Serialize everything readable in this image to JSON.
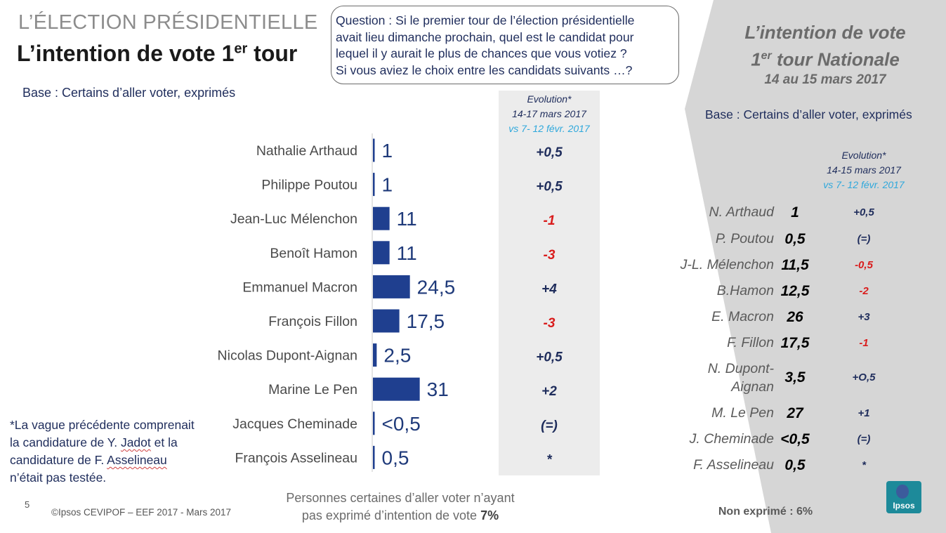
{
  "header": {
    "kicker": "L’ÉLECTION PRÉSIDENTIELLE",
    "title_main": "L’intention de vote 1",
    "title_sup": "er",
    "title_end": " tour",
    "base": "Base : Certains d’aller voter, exprimés"
  },
  "question": {
    "lines": [
      "Question : Si le premier tour de l’élection présidentielle",
      "avait lieu dimanche prochain, quel est le candidat pour",
      "lequel il y aurait le plus de chances que vous votiez ?",
      "Si vous aviez le choix entre les candidats suivants …?"
    ]
  },
  "evolution_header": {
    "line1": "Evolution*",
    "line2": "14-17 mars 2017",
    "line3": "vs 7- 12 févr. 2017"
  },
  "chart_data": {
    "type": "bar",
    "orientation": "horizontal",
    "categories": [
      "Nathalie Arthaud",
      "Philippe Poutou",
      "Jean-Luc Mélenchon",
      "Benoît Hamon",
      "Emmanuel Macron",
      "François Fillon",
      "Nicolas Dupont-Aignan",
      "Marine Le Pen",
      "Jacques Cheminade",
      "François Asselineau"
    ],
    "values": [
      1,
      1,
      11,
      11,
      24.5,
      17.5,
      2.5,
      31,
      0.3,
      0.5
    ],
    "value_labels": [
      "1",
      "1",
      "11",
      "11",
      "24,5",
      "17,5",
      "2,5",
      "31",
      "<0,5",
      "0,5"
    ],
    "evolution": [
      "+0,5",
      "+0,5",
      "-1",
      "-3",
      "+4",
      "-3",
      "+0,5",
      "+2",
      "(=)",
      "*"
    ],
    "evolution_sign": [
      "pos",
      "pos",
      "neg",
      "neg",
      "pos",
      "neg",
      "pos",
      "pos",
      "eq",
      "na"
    ],
    "bar_color": "#1f3f8f",
    "pos_color": "#1f2d5c",
    "neg_color": "#d91c1c",
    "xlim": [
      0,
      31
    ]
  },
  "footnote": {
    "line1": "*La vague précédente comprenait",
    "line2_a": "la candidature de Y. ",
    "line2_b": "Jadot",
    "line2_c": " et la",
    "line3_a": "candidature de F. ",
    "line3_b": "Asselineau",
    "line4": "n’était pas testée."
  },
  "footer": {
    "page_number": "5",
    "copyright": "©Ipsos  CEVIPOF – EEF 2017 - Mars 2017",
    "non_exprime_line1": "Personnes certaines d’aller voter n’ayant",
    "non_exprime_line2": "pas exprimé d’intention de vote ",
    "non_exprime_value": "7%"
  },
  "right_panel": {
    "title_line1": "L’intention de vote",
    "title_line2_a": "1",
    "title_line2_sup": "er",
    "title_line2_b": " tour Nationale",
    "date": "14 au 15 mars 2017",
    "base": "Base : Certains d’aller voter, exprimés",
    "evo_line1": "Evolution*",
    "evo_line2": "14-15 mars 2017",
    "evo_line3": "vs 7- 12 févr. 2017",
    "rows": [
      {
        "name": "N. Arthaud",
        "value": "1",
        "evo": "+0,5",
        "sign": "pos"
      },
      {
        "name": "P. Poutou",
        "value": "0,5",
        "evo": "(=)",
        "sign": "eq"
      },
      {
        "name": "J-L. Mélenchon",
        "value": "11,5",
        "evo": "-0,5",
        "sign": "neg"
      },
      {
        "name": "B.Hamon",
        "value": "12,5",
        "evo": "-2",
        "sign": "neg"
      },
      {
        "name": "E. Macron",
        "value": "26",
        "evo": "+3",
        "sign": "pos"
      },
      {
        "name": "F. Fillon",
        "value": "17,5",
        "evo": "-1",
        "sign": "neg"
      },
      {
        "name": "N. Dupont-",
        "name2": "Aignan",
        "value": "3,5",
        "evo": "+O,5",
        "sign": "pos"
      },
      {
        "name": "M. Le Pen",
        "value": "27",
        "evo": "+1",
        "sign": "pos"
      },
      {
        "name": "J. Cheminade",
        "value": "<0,5",
        "evo": "(=)",
        "sign": "eq"
      },
      {
        "name": "F. Asselineau",
        "value": "0,5",
        "evo": "*",
        "sign": "na"
      }
    ],
    "non_exprime": "Non exprimé : 6%"
  },
  "logo": {
    "text": "Ipsos"
  }
}
